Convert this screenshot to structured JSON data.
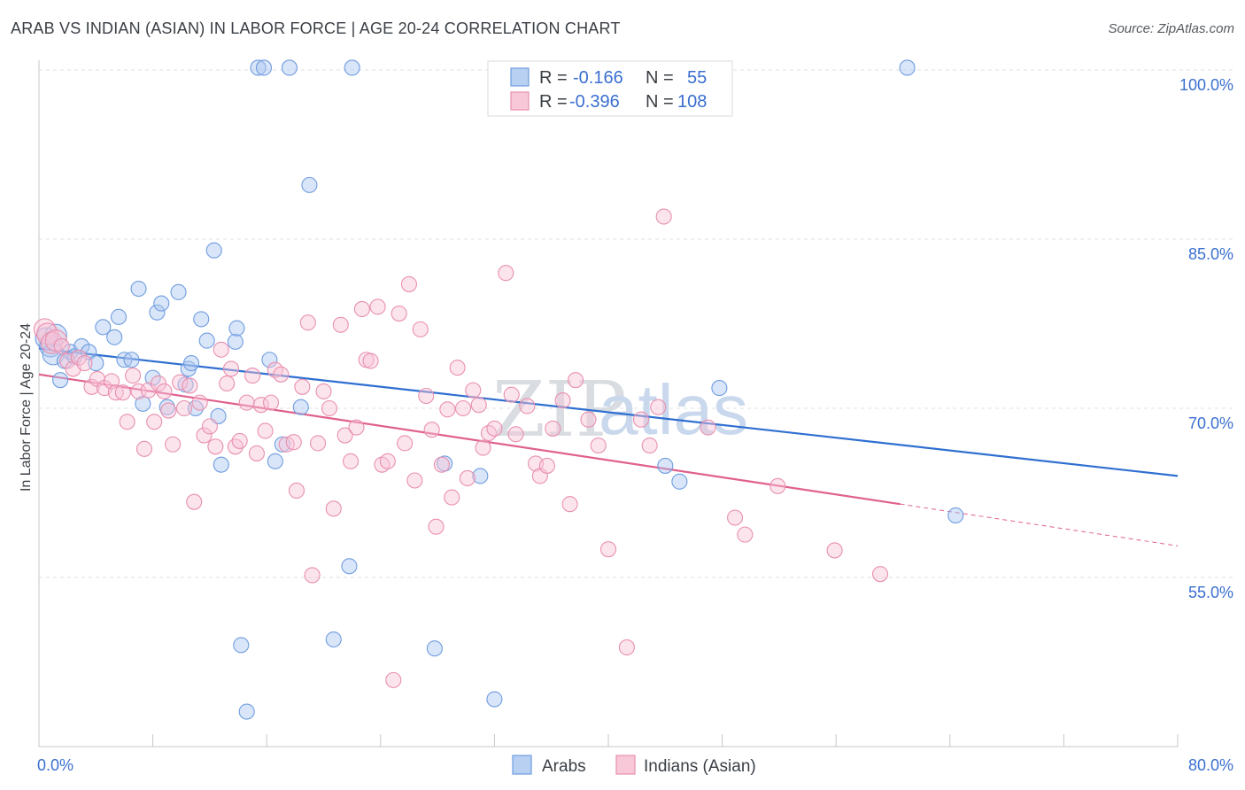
{
  "title": "ARAB VS INDIAN (ASIAN) IN LABOR FORCE | AGE 20-24 CORRELATION CHART",
  "source": "Source: ZipAtlas.com",
  "watermark": {
    "part1": "ZIP",
    "part2": "atlas"
  },
  "chart_data": {
    "type": "scatter",
    "xlabel": "",
    "ylabel": "In Labor Force | Age 20-24",
    "xlim": [
      0,
      80
    ],
    "ylim": [
      41,
      102
    ],
    "x_tick_labels": {
      "min": "0.0%",
      "max": "80.0%"
    },
    "y_ticks": [
      {
        "value": 55,
        "label": "55.0%"
      },
      {
        "value": 70,
        "label": "70.0%"
      },
      {
        "value": 85,
        "label": "85.0%"
      },
      {
        "value": 100,
        "label": "100.0%"
      }
    ],
    "legend": {
      "r_label": "R =",
      "n_label": "N =",
      "entries": [
        {
          "name": "Arabs",
          "r": "-0.166",
          "n": "55",
          "color": "#6f9de0",
          "fill": "#b8d0f2"
        },
        {
          "name": "Indians (Asian)",
          "r": "-0.396",
          "n": "108",
          "color": "#e890b0",
          "fill": "#f8c8d8"
        }
      ]
    },
    "series": [
      {
        "name": "Arabs",
        "stroke": "#6f9de0",
        "fill": "rgba(170,198,240,0.45)",
        "trend_color": "#2f6fd0",
        "trend": {
          "x1": 0,
          "y1": 75.3,
          "x2": 80,
          "y2": 64.0,
          "dash_from": null
        },
        "points": [
          [
            0.5,
            76.2
          ],
          [
            0.8,
            75.5
          ],
          [
            1.0,
            74.8
          ],
          [
            1.2,
            76.5
          ],
          [
            1.5,
            72.5
          ],
          [
            1.8,
            74.2
          ],
          [
            2.2,
            75.0
          ],
          [
            2.5,
            74.6
          ],
          [
            3.0,
            75.5
          ],
          [
            3.5,
            75.0
          ],
          [
            4.0,
            74.0
          ],
          [
            4.5,
            77.2
          ],
          [
            5.3,
            76.3
          ],
          [
            5.6,
            78.1
          ],
          [
            6.0,
            74.3
          ],
          [
            6.5,
            74.3
          ],
          [
            7.0,
            80.6
          ],
          [
            7.3,
            70.4
          ],
          [
            8.0,
            72.7
          ],
          [
            8.3,
            78.5
          ],
          [
            8.6,
            79.3
          ],
          [
            9.0,
            70.1
          ],
          [
            9.8,
            80.3
          ],
          [
            10.3,
            72.1
          ],
          [
            10.5,
            73.5
          ],
          [
            10.7,
            74.0
          ],
          [
            11.0,
            70.0
          ],
          [
            11.4,
            77.9
          ],
          [
            11.8,
            76.0
          ],
          [
            12.3,
            84.0
          ],
          [
            12.6,
            69.3
          ],
          [
            12.8,
            65.0
          ],
          [
            13.8,
            75.9
          ],
          [
            13.9,
            77.1
          ],
          [
            14.2,
            49.0
          ],
          [
            14.6,
            43.1
          ],
          [
            15.4,
            100.2
          ],
          [
            15.8,
            100.2
          ],
          [
            16.2,
            74.3
          ],
          [
            16.6,
            65.3
          ],
          [
            17.1,
            66.8
          ],
          [
            17.6,
            100.2
          ],
          [
            18.4,
            70.1
          ],
          [
            19.0,
            89.8
          ],
          [
            20.7,
            49.5
          ],
          [
            21.8,
            56.0
          ],
          [
            22.0,
            100.2
          ],
          [
            27.8,
            48.7
          ],
          [
            28.5,
            65.1
          ],
          [
            31.0,
            64.0
          ],
          [
            32.0,
            44.2
          ],
          [
            44.0,
            64.9
          ],
          [
            45.0,
            63.5
          ],
          [
            47.8,
            71.8
          ],
          [
            64.4,
            60.5
          ],
          [
            61.0,
            100.2
          ]
        ]
      },
      {
        "name": "Indians (Asian)",
        "stroke": "#e890b0",
        "fill": "rgba(248,196,214,0.45)",
        "trend_color": "#e0608e",
        "trend": {
          "x1": 0,
          "y1": 73.0,
          "x2": 80,
          "y2": 57.8,
          "dash_from": 60.5
        },
        "points": [
          [
            0.4,
            77.0
          ],
          [
            0.6,
            76.6
          ],
          [
            0.9,
            75.8
          ],
          [
            1.2,
            76.0
          ],
          [
            1.6,
            75.5
          ],
          [
            2.0,
            74.2
          ],
          [
            2.4,
            73.5
          ],
          [
            2.8,
            74.5
          ],
          [
            3.2,
            74.0
          ],
          [
            3.7,
            71.9
          ],
          [
            4.1,
            72.6
          ],
          [
            4.6,
            71.8
          ],
          [
            5.1,
            72.4
          ],
          [
            5.4,
            71.4
          ],
          [
            5.9,
            71.4
          ],
          [
            6.2,
            68.8
          ],
          [
            6.6,
            72.9
          ],
          [
            7.0,
            71.5
          ],
          [
            7.4,
            66.4
          ],
          [
            7.7,
            71.6
          ],
          [
            8.1,
            68.8
          ],
          [
            8.4,
            72.2
          ],
          [
            8.8,
            71.5
          ],
          [
            9.1,
            69.8
          ],
          [
            9.4,
            66.8
          ],
          [
            9.9,
            72.3
          ],
          [
            10.2,
            70.0
          ],
          [
            10.6,
            72.0
          ],
          [
            10.9,
            61.7
          ],
          [
            11.3,
            70.5
          ],
          [
            11.6,
            67.6
          ],
          [
            12.0,
            68.4
          ],
          [
            12.4,
            66.6
          ],
          [
            12.8,
            75.2
          ],
          [
            13.2,
            72.2
          ],
          [
            13.5,
            73.5
          ],
          [
            13.8,
            66.6
          ],
          [
            14.1,
            67.1
          ],
          [
            14.6,
            70.5
          ],
          [
            15.0,
            72.9
          ],
          [
            15.3,
            66.0
          ],
          [
            15.6,
            70.3
          ],
          [
            15.9,
            68.0
          ],
          [
            16.3,
            70.5
          ],
          [
            16.6,
            73.4
          ],
          [
            17.0,
            73.0
          ],
          [
            17.4,
            66.8
          ],
          [
            17.9,
            67.0
          ],
          [
            18.1,
            62.7
          ],
          [
            18.5,
            71.9
          ],
          [
            18.9,
            77.6
          ],
          [
            19.2,
            55.2
          ],
          [
            19.6,
            66.9
          ],
          [
            20.0,
            71.5
          ],
          [
            20.4,
            70.0
          ],
          [
            20.7,
            61.1
          ],
          [
            21.2,
            77.4
          ],
          [
            21.5,
            67.6
          ],
          [
            21.9,
            65.3
          ],
          [
            22.3,
            68.3
          ],
          [
            22.7,
            78.8
          ],
          [
            23.0,
            74.3
          ],
          [
            23.3,
            74.2
          ],
          [
            23.8,
            79.0
          ],
          [
            24.1,
            65.0
          ],
          [
            24.5,
            65.3
          ],
          [
            24.9,
            45.9
          ],
          [
            25.3,
            78.4
          ],
          [
            25.7,
            66.9
          ],
          [
            26.0,
            81.0
          ],
          [
            26.4,
            63.6
          ],
          [
            26.8,
            77.0
          ],
          [
            27.2,
            71.1
          ],
          [
            27.6,
            68.1
          ],
          [
            27.9,
            59.5
          ],
          [
            28.3,
            65.0
          ],
          [
            28.7,
            69.9
          ],
          [
            29.0,
            62.1
          ],
          [
            29.4,
            73.6
          ],
          [
            29.8,
            70.0
          ],
          [
            30.1,
            63.8
          ],
          [
            30.5,
            71.6
          ],
          [
            30.9,
            70.3
          ],
          [
            31.2,
            66.5
          ],
          [
            31.6,
            67.8
          ],
          [
            32.0,
            68.2
          ],
          [
            32.8,
            82.0
          ],
          [
            33.2,
            71.2
          ],
          [
            33.5,
            67.7
          ],
          [
            34.3,
            70.2
          ],
          [
            34.9,
            65.1
          ],
          [
            35.2,
            64.0
          ],
          [
            35.7,
            64.9
          ],
          [
            36.1,
            68.2
          ],
          [
            36.8,
            70.7
          ],
          [
            37.3,
            61.5
          ],
          [
            37.7,
            72.5
          ],
          [
            38.6,
            69.0
          ],
          [
            39.3,
            66.7
          ],
          [
            40.0,
            57.5
          ],
          [
            41.3,
            48.8
          ],
          [
            42.3,
            69.0
          ],
          [
            42.9,
            66.7
          ],
          [
            43.5,
            70.1
          ],
          [
            43.9,
            87.0
          ],
          [
            47.0,
            68.3
          ],
          [
            48.9,
            60.3
          ],
          [
            49.6,
            58.8
          ],
          [
            51.9,
            63.1
          ],
          [
            55.9,
            57.4
          ],
          [
            59.1,
            55.3
          ]
        ]
      }
    ]
  }
}
